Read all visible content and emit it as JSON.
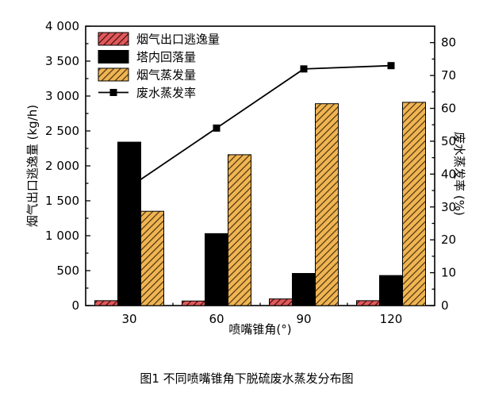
{
  "figure": {
    "caption": "图1 不同喷嘴锥角下脱硫废水蒸发分布图"
  },
  "chart_data": {
    "type": "bar",
    "categories": [
      "30",
      "60",
      "90",
      "120"
    ],
    "xlabel": "喷嘴锥角(°)",
    "ylabel": "烟气出口逃逸量 (kg/h)",
    "y2label": "废水蒸发率 (%)",
    "ylim": [
      0,
      4000
    ],
    "y2lim": [
      0,
      85
    ],
    "yticks": [
      "0",
      "500",
      "1 000",
      "1 500",
      "2 000",
      "2 500",
      "3 000",
      "3 500",
      "4 000"
    ],
    "y2ticks": [
      "0",
      "10",
      "20",
      "30",
      "40",
      "50",
      "60",
      "70",
      "80"
    ],
    "grid": false,
    "legend_position": "top-left",
    "series": [
      {
        "name": "烟气出口逃逸量",
        "type": "bar",
        "axis": "left",
        "color": "#c8323a",
        "pattern": "hatch",
        "values": [
          70,
          65,
          95,
          70
        ]
      },
      {
        "name": "塔内回落量",
        "type": "bar",
        "axis": "left",
        "color": "#000000",
        "pattern": "solid",
        "values": [
          2340,
          1030,
          460,
          430
        ]
      },
      {
        "name": "烟气蒸发量",
        "type": "bar",
        "axis": "left",
        "color": "#d9a441",
        "pattern": "hatch",
        "values": [
          1350,
          2160,
          2890,
          2910
        ]
      },
      {
        "name": "废水蒸发率",
        "type": "line",
        "axis": "right",
        "color": "#000000",
        "marker": "square",
        "values": [
          36,
          54,
          72,
          73
        ]
      }
    ]
  }
}
